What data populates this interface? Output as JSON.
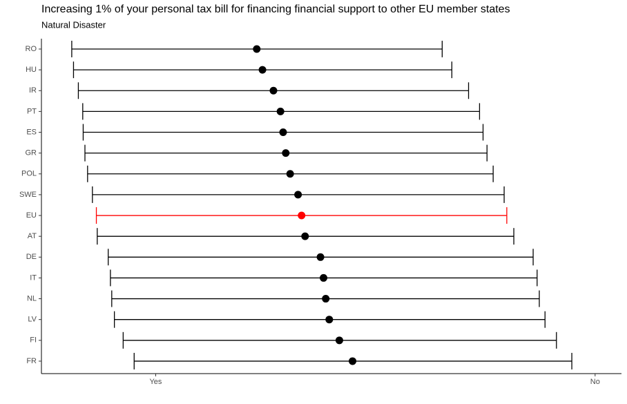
{
  "chart_data": {
    "type": "errorbar",
    "title": "Increasing 1% of your personal tax bill for financing financial support to other EU member states",
    "subtitle": "Natural Disaster",
    "categories": [
      "RO",
      "HU",
      "IR",
      "PT",
      "ES",
      "GR",
      "POL",
      "SWE",
      "EU",
      "AT",
      "DE",
      "IT",
      "NL",
      "LV",
      "FI",
      "FR"
    ],
    "values": [
      1.23,
      1.243,
      1.268,
      1.284,
      1.29,
      1.296,
      1.306,
      1.324,
      1.332,
      1.34,
      1.375,
      1.382,
      1.387,
      1.395,
      1.418,
      1.448
    ],
    "lower": [
      0.809,
      0.813,
      0.824,
      0.834,
      0.835,
      0.839,
      0.845,
      0.856,
      0.865,
      0.867,
      0.892,
      0.897,
      0.9,
      0.906,
      0.926,
      0.951
    ],
    "upper": [
      1.652,
      1.674,
      1.712,
      1.737,
      1.745,
      1.754,
      1.768,
      1.793,
      1.799,
      1.815,
      1.859,
      1.868,
      1.873,
      1.886,
      1.912,
      1.947
    ],
    "colors": [
      "#000000",
      "#000000",
      "#000000",
      "#000000",
      "#000000",
      "#000000",
      "#000000",
      "#000000",
      "#ff0000",
      "#000000",
      "#000000",
      "#000000",
      "#000000",
      "#000000",
      "#000000",
      "#000000"
    ],
    "xlim": [
      0.74,
      2.06
    ],
    "xticks": [
      {
        "value": 1,
        "label": "Yes"
      },
      {
        "value": 2,
        "label": "No"
      }
    ]
  }
}
